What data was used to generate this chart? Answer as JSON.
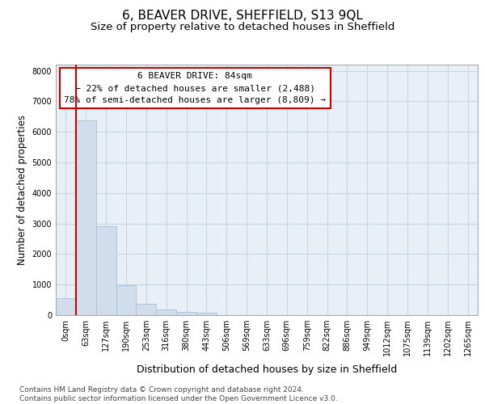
{
  "title": "6, BEAVER DRIVE, SHEFFIELD, S13 9QL",
  "subtitle": "Size of property relative to detached houses in Sheffield",
  "xlabel": "Distribution of detached houses by size in Sheffield",
  "ylabel": "Number of detached properties",
  "categories": [
    "0sqm",
    "63sqm",
    "127sqm",
    "190sqm",
    "253sqm",
    "316sqm",
    "380sqm",
    "443sqm",
    "506sqm",
    "569sqm",
    "633sqm",
    "696sqm",
    "759sqm",
    "822sqm",
    "886sqm",
    "949sqm",
    "1012sqm",
    "1075sqm",
    "1139sqm",
    "1202sqm",
    "1265sqm"
  ],
  "values": [
    560,
    6380,
    2920,
    980,
    380,
    175,
    105,
    75,
    0,
    0,
    0,
    0,
    0,
    0,
    0,
    0,
    0,
    0,
    0,
    0,
    0
  ],
  "bar_color": "#cfdded",
  "bar_edge_color": "#aabfd4",
  "red_line_x": 0.5,
  "annotation_text": "6 BEAVER DRIVE: 84sqm\n← 22% of detached houses are smaller (2,488)\n78% of semi-detached houses are larger (8,809) →",
  "annotation_box_color": "#ffffff",
  "annotation_box_edge_color": "#cc0000",
  "grid_color": "#c8d5e2",
  "plot_bg_color": "#e8eff6",
  "fig_bg_color": "#ffffff",
  "ylim": [
    0,
    8200
  ],
  "yticks": [
    0,
    1000,
    2000,
    3000,
    4000,
    5000,
    6000,
    7000,
    8000
  ],
  "footer_text": "Contains HM Land Registry data © Crown copyright and database right 2024.\nContains public sector information licensed under the Open Government Licence v3.0.",
  "title_fontsize": 11,
  "subtitle_fontsize": 9.5,
  "tick_fontsize": 7,
  "ylabel_fontsize": 8.5,
  "xlabel_fontsize": 9,
  "footer_fontsize": 6.5
}
